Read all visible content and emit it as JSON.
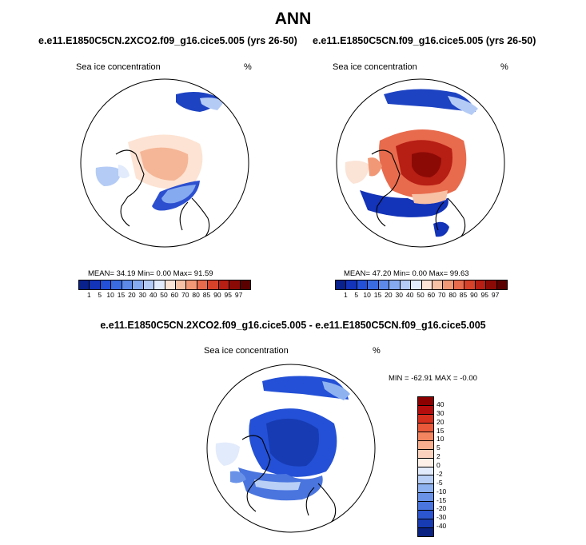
{
  "chart_data": [
    {
      "type": "map",
      "title": "e.e11.E1850C5CN.2XCO2.f09_g16.cice5.005 (yrs 26-50)",
      "variable": "Sea ice concentration",
      "units": "%",
      "mean": "34.19",
      "min": "0.00",
      "max": "91.59",
      "stats_line": "MEAN=  34.19  Min=   0.00  Max=  91.59",
      "colorbar_levels": [
        "1",
        "5",
        "10",
        "15",
        "20",
        "30",
        "40",
        "50",
        "60",
        "70",
        "80",
        "85",
        "90",
        "95",
        "97"
      ]
    },
    {
      "type": "map",
      "title": "e.e11.E1850C5CN.f09_g16.cice5.005 (yrs 26-50)",
      "variable": "Sea ice concentration",
      "units": "%",
      "mean": "47.20",
      "min": "0.00",
      "max": "99.63",
      "stats_line": "MEAN=  47.20  Min=   0.00  Max=  99.63",
      "colorbar_levels": [
        "1",
        "5",
        "10",
        "15",
        "20",
        "30",
        "40",
        "50",
        "60",
        "70",
        "80",
        "85",
        "90",
        "95",
        "97"
      ]
    },
    {
      "type": "map",
      "title": "e.e11.E1850C5CN.2XCO2.f09_g16.cice5.005 - e.e11.E1850C5CN.f09_g16.cice5.005",
      "variable": "Sea ice concentration",
      "units": "%",
      "min": "-62.91",
      "max": "-0.00",
      "stats_line": "MIN = -62.91  MAX =   -0.00",
      "colorbar_levels": [
        "40",
        "30",
        "20",
        "15",
        "10",
        "5",
        "2",
        "0",
        "-2",
        "-5",
        "-10",
        "-15",
        "-20",
        "-30",
        "-40"
      ]
    }
  ],
  "page": {
    "title": "ANN"
  },
  "colors": {
    "abs_scale": [
      "#08218c",
      "#1333b8",
      "#2350d6",
      "#3a6be0",
      "#5d8ae8",
      "#86aaef",
      "#b4cbf5",
      "#e1ebfb",
      "#fbe3d6",
      "#f7c1a6",
      "#f19876",
      "#e86b4d",
      "#d7422b",
      "#b71e14",
      "#8c0a06",
      "#5a0000"
    ],
    "diff_scale": [
      "#8c0000",
      "#b50d0d",
      "#d62f1e",
      "#ea5a3a",
      "#f38560",
      "#f7ae8e",
      "#fbd2be",
      "#fdf0e8",
      "#e2ebfb",
      "#b9cff5",
      "#8eb2ef",
      "#6a93e8",
      "#4a75df",
      "#2c56cf",
      "#173bb3",
      "#0a2282"
    ]
  }
}
